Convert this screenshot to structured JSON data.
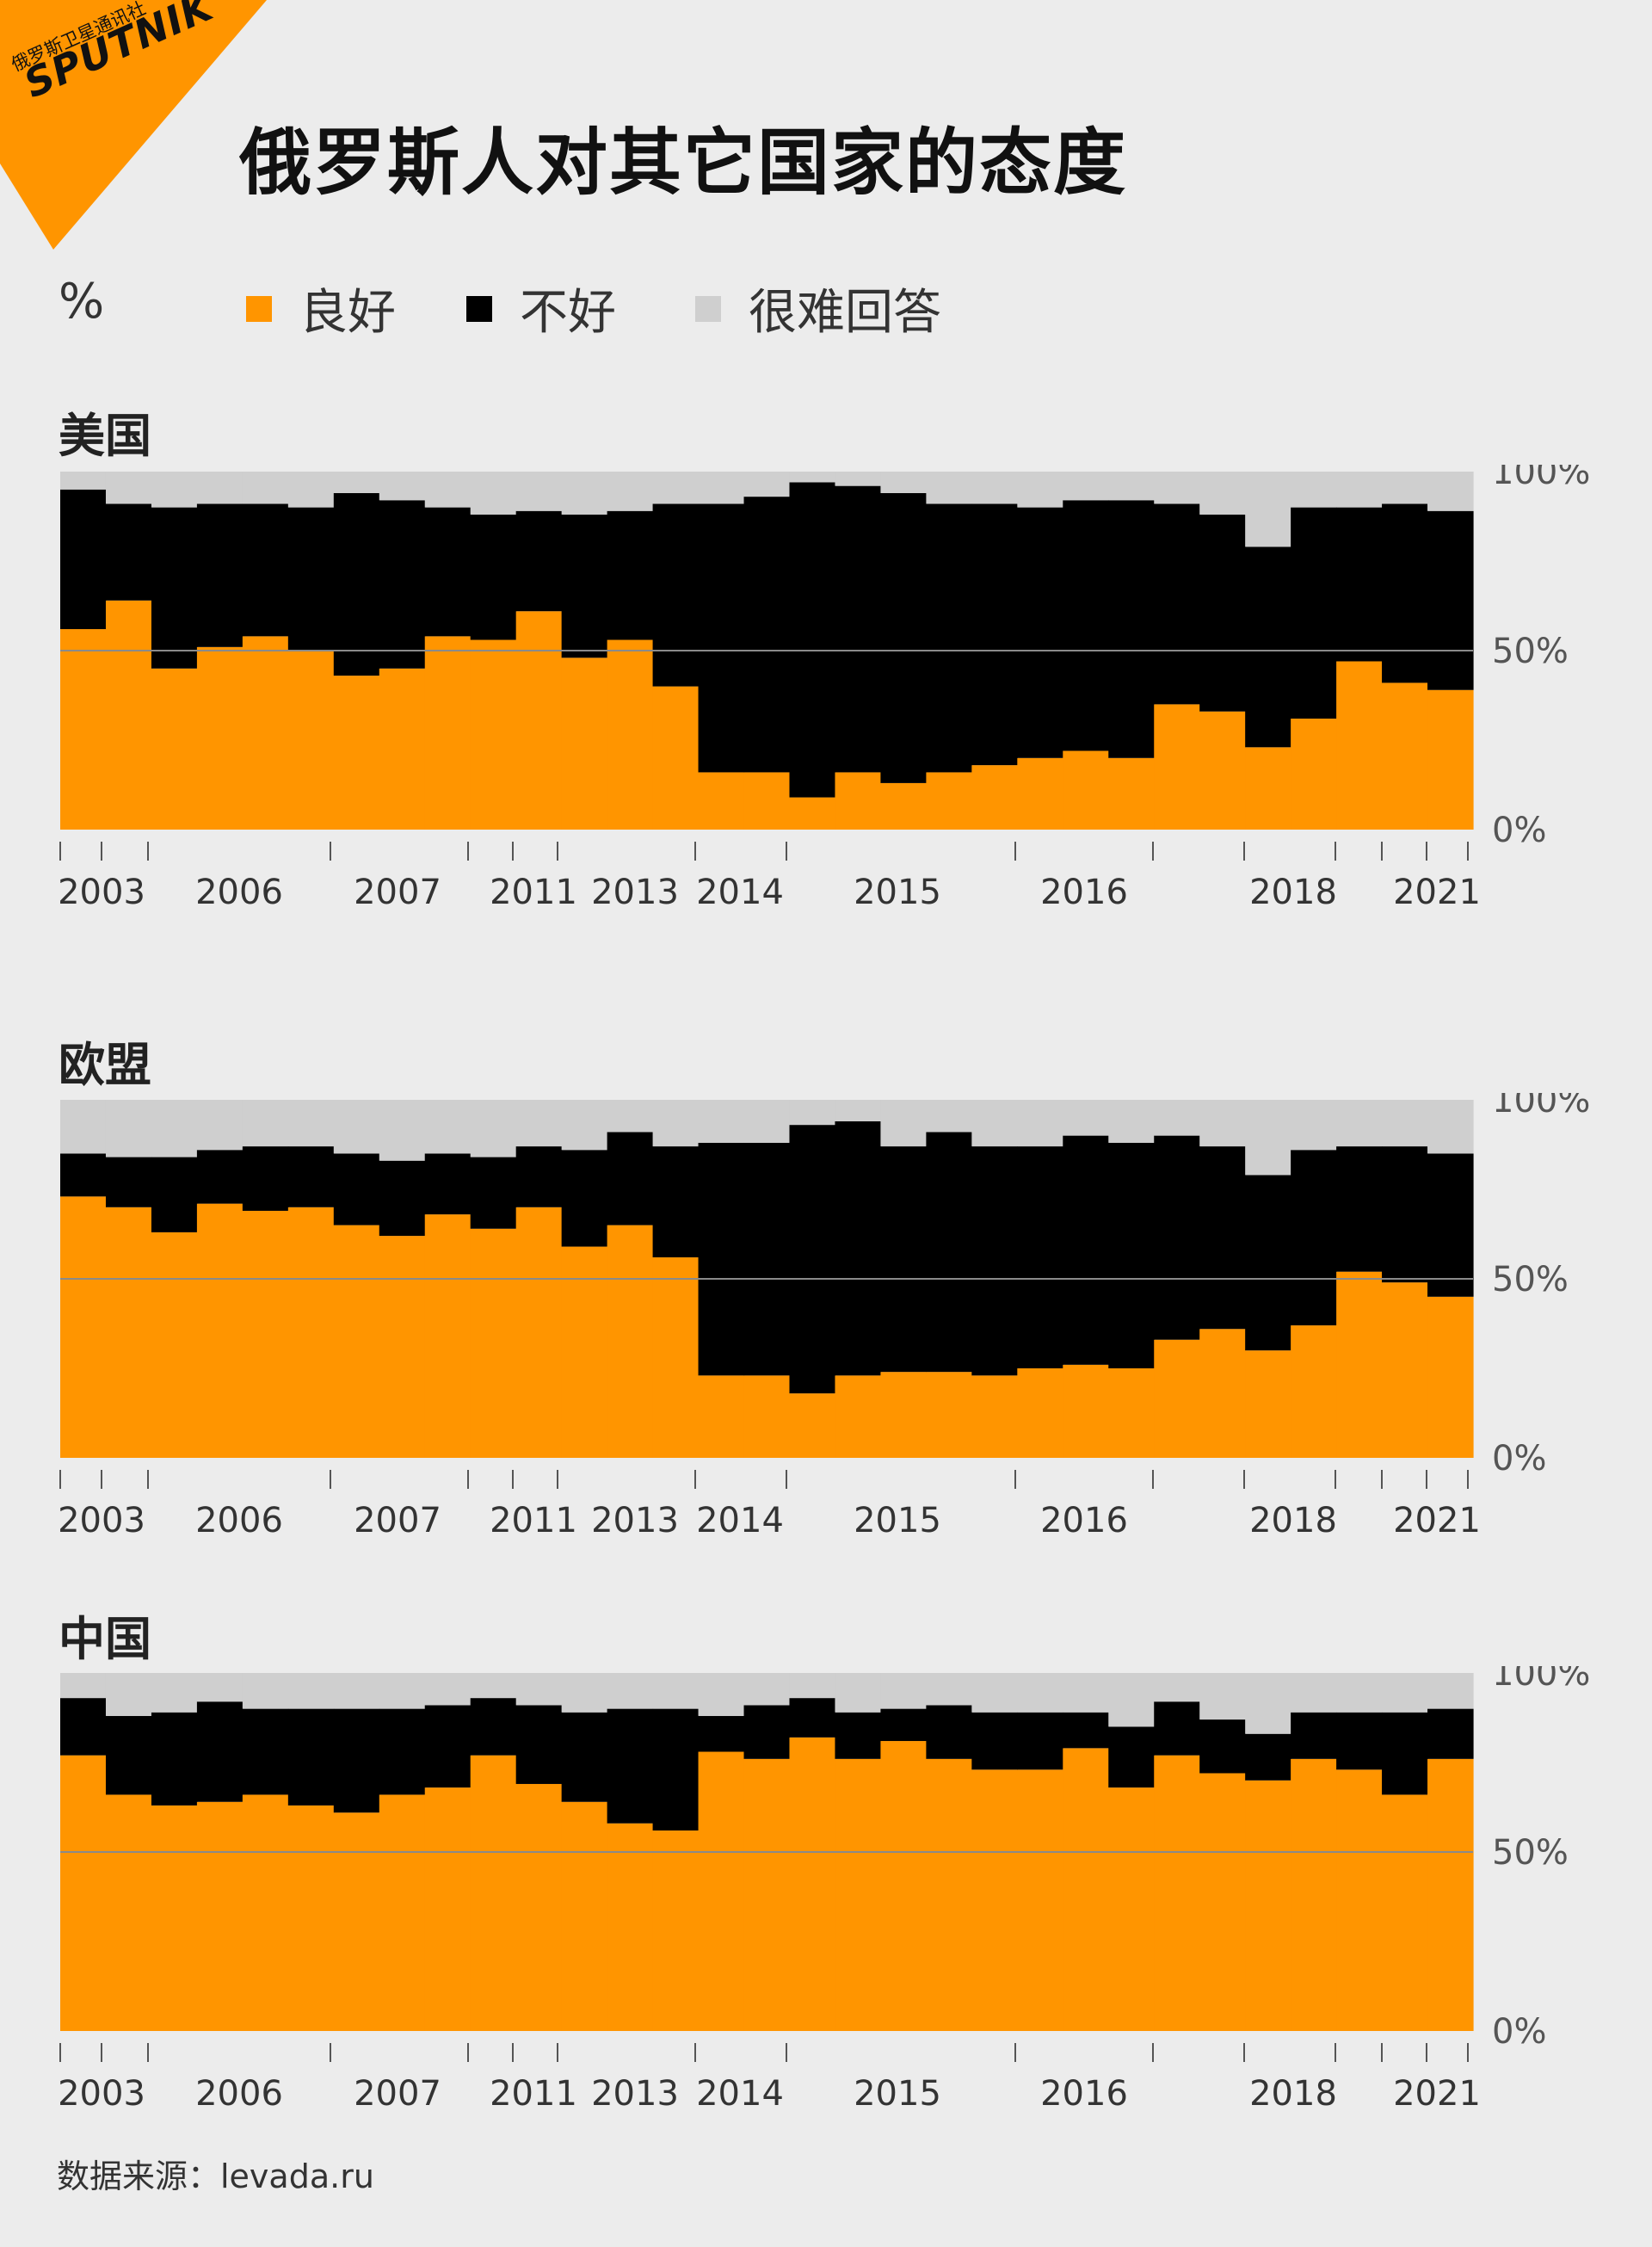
{
  "brand": {
    "name": "SPUTNIK",
    "subtitle": "俄罗斯卫星通讯社",
    "accent_color": "#ff9500"
  },
  "title": "俄罗斯人对其它国家的态度",
  "legend": {
    "unit": "%",
    "items": [
      {
        "label": "良好",
        "color": "#ff9500"
      },
      {
        "label": "不好",
        "color": "#000000"
      },
      {
        "label": "很难回答",
        "color": "#cfcfcf"
      }
    ]
  },
  "source": "数据来源：levada.ru",
  "chart_data": [
    {
      "type": "area",
      "stacked": true,
      "step": true,
      "title": "美国",
      "ylim": [
        0,
        100
      ],
      "y_tick_labels": [
        "100%",
        "50%",
        "0%"
      ],
      "x_tick_labels": [
        "2003",
        "2006",
        "2007",
        "2011",
        "2013",
        "2014",
        "2015",
        "2016",
        "2018",
        "2021"
      ],
      "series": [
        {
          "name": "良好",
          "color": "#ff9500",
          "values": [
            56,
            64,
            45,
            51,
            54,
            50,
            43,
            45,
            54,
            53,
            61,
            48,
            53,
            40,
            16,
            16,
            9,
            16,
            13,
            16,
            18,
            20,
            22,
            20,
            35,
            33,
            23,
            31,
            47,
            41,
            39
          ]
        },
        {
          "name": "不好",
          "color": "#000000",
          "values": [
            39,
            27,
            45,
            40,
            37,
            40,
            51,
            47,
            36,
            35,
            28,
            40,
            36,
            51,
            75,
            77,
            88,
            80,
            81,
            75,
            73,
            70,
            70,
            72,
            56,
            55,
            56,
            59,
            43,
            50,
            50
          ]
        },
        {
          "name": "很难回答",
          "color": "#cfcfcf",
          "values": [
            5,
            9,
            10,
            9,
            9,
            10,
            6,
            8,
            10,
            12,
            11,
            12,
            11,
            9,
            9,
            7,
            3,
            4,
            6,
            9,
            9,
            10,
            8,
            8,
            9,
            12,
            21,
            10,
            10,
            9,
            11
          ]
        }
      ],
      "gridlines": [
        50
      ]
    },
    {
      "type": "area",
      "stacked": true,
      "step": true,
      "title": "欧盟",
      "ylim": [
        0,
        100
      ],
      "y_tick_labels": [
        "100%",
        "50%",
        "0%"
      ],
      "x_tick_labels": [
        "2003",
        "2006",
        "2007",
        "2011",
        "2013",
        "2014",
        "2015",
        "2016",
        "2018",
        "2021"
      ],
      "series": [
        {
          "name": "良好",
          "color": "#ff9500",
          "values": [
            73,
            70,
            63,
            71,
            69,
            70,
            65,
            62,
            68,
            64,
            70,
            59,
            65,
            56,
            23,
            23,
            18,
            23,
            24,
            24,
            23,
            25,
            26,
            25,
            33,
            36,
            30,
            37,
            52,
            49,
            45
          ]
        },
        {
          "name": "不好",
          "color": "#000000",
          "values": [
            12,
            14,
            21,
            15,
            18,
            17,
            20,
            21,
            17,
            20,
            17,
            27,
            26,
            31,
            65,
            65,
            75,
            71,
            63,
            67,
            64,
            62,
            64,
            63,
            57,
            51,
            49,
            49,
            35,
            38,
            40
          ]
        },
        {
          "name": "很难回答",
          "color": "#cfcfcf",
          "values": [
            15,
            16,
            16,
            14,
            13,
            13,
            15,
            17,
            15,
            16,
            13,
            14,
            9,
            13,
            12,
            12,
            7,
            6,
            13,
            9,
            13,
            13,
            10,
            12,
            10,
            13,
            21,
            14,
            13,
            13,
            15
          ]
        }
      ],
      "gridlines": [
        50
      ]
    },
    {
      "type": "area",
      "stacked": true,
      "step": true,
      "title": "中国",
      "ylim": [
        0,
        100
      ],
      "y_tick_labels": [
        "100%",
        "50%",
        "0%"
      ],
      "x_tick_labels": [
        "2003",
        "2006",
        "2007",
        "2011",
        "2013",
        "2014",
        "2015",
        "2016",
        "2018",
        "2021"
      ],
      "series": [
        {
          "name": "良好",
          "color": "#ff9500",
          "values": [
            77,
            66,
            63,
            64,
            66,
            63,
            61,
            66,
            68,
            77,
            69,
            64,
            58,
            56,
            78,
            76,
            82,
            76,
            81,
            76,
            73,
            73,
            79,
            68,
            77,
            72,
            70,
            76,
            73,
            66,
            76
          ]
        },
        {
          "name": "不好",
          "color": "#000000",
          "values": [
            16,
            22,
            26,
            28,
            24,
            27,
            29,
            24,
            23,
            16,
            22,
            25,
            32,
            34,
            10,
            15,
            11,
            13,
            9,
            15,
            16,
            16,
            10,
            17,
            15,
            15,
            13,
            13,
            16,
            23,
            14
          ]
        },
        {
          "name": "很难回答",
          "color": "#cfcfcf",
          "values": [
            7,
            12,
            11,
            8,
            10,
            10,
            10,
            10,
            9,
            7,
            9,
            11,
            10,
            10,
            12,
            9,
            7,
            11,
            10,
            9,
            11,
            11,
            11,
            15,
            8,
            13,
            17,
            11,
            11,
            11,
            10
          ]
        }
      ],
      "gridlines": [
        50
      ]
    }
  ]
}
